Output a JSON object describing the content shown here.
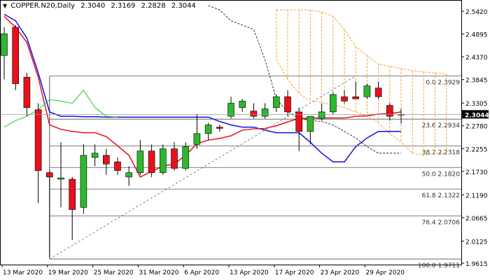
{
  "header": {
    "symbol": "COPPER.N20,Daily",
    "open": "2.3040",
    "high": "2.3169",
    "low": "2.2828",
    "close": "2.3044"
  },
  "chart_data": {
    "type": "candlestick",
    "y_ticks": [
      "2.5420",
      "2.4895",
      "2.4370",
      "2.3845",
      "2.3305",
      "2.2780",
      "2.2255",
      "2.1730",
      "2.1190",
      "2.0665",
      "2.0125",
      "1.9615"
    ],
    "ylim": [
      1.9615,
      2.542
    ],
    "x_labels": [
      {
        "index": 0,
        "label": "13 Mar 2020"
      },
      {
        "index": 4,
        "label": "19 Mar 2020"
      },
      {
        "index": 8,
        "label": "25 Mar 2020"
      },
      {
        "index": 12,
        "label": "31 Mar 2020"
      },
      {
        "index": 16,
        "label": "6 Apr 2020"
      },
      {
        "index": 20,
        "label": "13 Apr 2020"
      },
      {
        "index": 24,
        "label": "17 Apr 2020"
      },
      {
        "index": 28,
        "label": "23 Apr 2020"
      },
      {
        "index": 32,
        "label": "29 Apr 2020"
      }
    ],
    "bull_color": "#2db82d",
    "bear_color": "#e8101a",
    "candles": [
      {
        "o": 2.44,
        "h": 2.505,
        "l": 2.385,
        "c": 2.49
      },
      {
        "o": 2.505,
        "h": 2.51,
        "l": 2.36,
        "c": 2.375
      },
      {
        "o": 2.39,
        "h": 2.4,
        "l": 2.3,
        "c": 2.32
      },
      {
        "o": 2.315,
        "h": 2.33,
        "l": 2.1,
        "c": 2.175
      },
      {
        "o": 2.17,
        "h": 2.175,
        "l": 1.975,
        "c": 2.16
      },
      {
        "o": 2.155,
        "h": 2.24,
        "l": 2.09,
        "c": 2.158
      },
      {
        "o": 2.155,
        "h": 2.16,
        "l": 2.015,
        "c": 2.085
      },
      {
        "o": 2.09,
        "h": 2.235,
        "l": 2.075,
        "c": 2.21
      },
      {
        "o": 2.205,
        "h": 2.235,
        "l": 2.185,
        "c": 2.215
      },
      {
        "o": 2.21,
        "h": 2.225,
        "l": 2.165,
        "c": 2.19
      },
      {
        "o": 2.195,
        "h": 2.205,
        "l": 2.165,
        "c": 2.175
      },
      {
        "o": 2.16,
        "h": 2.185,
        "l": 2.14,
        "c": 2.17
      },
      {
        "o": 2.17,
        "h": 2.245,
        "l": 2.165,
        "c": 2.22
      },
      {
        "o": 2.22,
        "h": 2.235,
        "l": 2.16,
        "c": 2.17
      },
      {
        "o": 2.17,
        "h": 2.235,
        "l": 2.165,
        "c": 2.225
      },
      {
        "o": 2.225,
        "h": 2.24,
        "l": 2.175,
        "c": 2.18
      },
      {
        "o": 2.18,
        "h": 2.24,
        "l": 2.175,
        "c": 2.23
      },
      {
        "o": 2.235,
        "h": 2.305,
        "l": 2.225,
        "c": 2.26
      },
      {
        "o": 2.26,
        "h": 2.285,
        "l": 2.245,
        "c": 2.28
      },
      {
        "o": 2.275,
        "h": 2.28,
        "l": 2.265,
        "c": 2.272
      },
      {
        "o": 2.3,
        "h": 2.345,
        "l": 2.295,
        "c": 2.33
      },
      {
        "o": 2.32,
        "h": 2.34,
        "l": 2.31,
        "c": 2.335
      },
      {
        "o": 2.312,
        "h": 2.33,
        "l": 2.295,
        "c": 2.3
      },
      {
        "o": 2.3,
        "h": 2.33,
        "l": 2.295,
        "c": 2.317
      },
      {
        "o": 2.32,
        "h": 2.35,
        "l": 2.31,
        "c": 2.345
      },
      {
        "o": 2.345,
        "h": 2.36,
        "l": 2.3,
        "c": 2.31
      },
      {
        "o": 2.31,
        "h": 2.32,
        "l": 2.22,
        "c": 2.265
      },
      {
        "o": 2.265,
        "h": 2.3,
        "l": 2.235,
        "c": 2.3
      },
      {
        "o": 2.295,
        "h": 2.33,
        "l": 2.29,
        "c": 2.31
      },
      {
        "o": 2.31,
        "h": 2.355,
        "l": 2.305,
        "c": 2.35
      },
      {
        "o": 2.345,
        "h": 2.36,
        "l": 2.33,
        "c": 2.335
      },
      {
        "o": 2.345,
        "h": 2.38,
        "l": 2.34,
        "c": 2.34
      },
      {
        "o": 2.345,
        "h": 2.375,
        "l": 2.34,
        "c": 2.37
      },
      {
        "o": 2.365,
        "h": 2.38,
        "l": 2.34,
        "c": 2.345
      },
      {
        "o": 2.325,
        "h": 2.33,
        "l": 2.29,
        "c": 2.3
      },
      {
        "o": 2.304,
        "h": 2.317,
        "l": 2.283,
        "c": 2.3044
      }
    ],
    "series": [
      {
        "color": "#1010e0",
        "width": 1.5,
        "values": [
          2.535,
          2.52,
          2.48,
          2.4,
          2.31,
          2.3,
          2.3,
          2.299,
          2.299,
          2.298,
          2.298,
          2.298,
          2.298,
          2.298,
          2.298,
          2.298,
          2.298,
          2.298,
          2.298,
          2.288,
          2.28,
          2.275,
          2.275,
          2.268,
          2.262,
          2.262,
          2.262,
          2.24,
          2.215,
          2.195,
          2.195,
          2.23,
          2.25,
          2.265,
          2.265,
          2.265
        ]
      },
      {
        "color": "#e8101a",
        "width": 1.5,
        "values": [
          2.53,
          2.505,
          2.47,
          2.39,
          2.28,
          2.27,
          2.265,
          2.262,
          2.262,
          2.253,
          2.232,
          2.21,
          2.16,
          2.173,
          2.185,
          2.19,
          2.21,
          2.237,
          2.245,
          2.249,
          2.255,
          2.268,
          2.271,
          2.272,
          2.278,
          2.287,
          2.295,
          2.296,
          2.296,
          2.296,
          2.296,
          2.3,
          2.301,
          2.305,
          2.306,
          2.31
        ]
      },
      {
        "color": "#22cc22",
        "width": 1,
        "values": [
          2.275,
          2.29,
          2.3,
          2.315,
          2.338,
          2.335,
          2.33,
          2.36,
          2.32,
          2.3,
          2.298
        ]
      },
      {
        "color": "#000000",
        "width": 0.8,
        "dash": "3,2",
        "offset": 18,
        "values": [
          2.555,
          2.545,
          2.52,
          2.51,
          2.5,
          2.43,
          2.34,
          2.31,
          2.295,
          2.29,
          2.288,
          2.28,
          2.265,
          2.25,
          2.23,
          2.215,
          2.215,
          2.215
        ]
      }
    ],
    "trendline": {
      "from": [
        4,
        1.9711
      ],
      "to": [
        31,
        2.3929
      ],
      "color": "#666666",
      "dash": "3,3"
    },
    "fibonacci": {
      "levels": [
        {
          "label": "0.0 2.3929",
          "value": 2.3929
        },
        {
          "label": "23.6 2.2934",
          "value": 2.2934
        },
        {
          "label": "38.2 2.2318",
          "value": 2.2318
        },
        {
          "label": "50.0 2.1820",
          "value": 2.182
        },
        {
          "label": "61.8 2.1322",
          "value": 2.1322
        },
        {
          "label": "76.4 2.0706",
          "value": 2.0706
        },
        {
          "label": "100.0 1.9711",
          "value": 1.9711
        }
      ],
      "start_index": 4,
      "color": "#555555"
    },
    "cloud": {
      "color": "#f59f2b",
      "start_index": 24,
      "top": [
        2.545,
        2.545,
        2.545,
        2.545,
        2.54,
        2.53,
        2.5,
        2.46,
        2.44,
        2.42,
        2.415,
        2.41,
        2.405,
        2.402,
        2.4,
        2.398
      ],
      "bottom": [
        2.43,
        2.385,
        2.352,
        2.335,
        2.332,
        2.326,
        2.32,
        2.31,
        2.3,
        2.285,
        2.26,
        2.24,
        2.215,
        2.21,
        2.215,
        2.215
      ]
    },
    "current_price": {
      "value": 2.3044,
      "label": "2.3044"
    }
  }
}
